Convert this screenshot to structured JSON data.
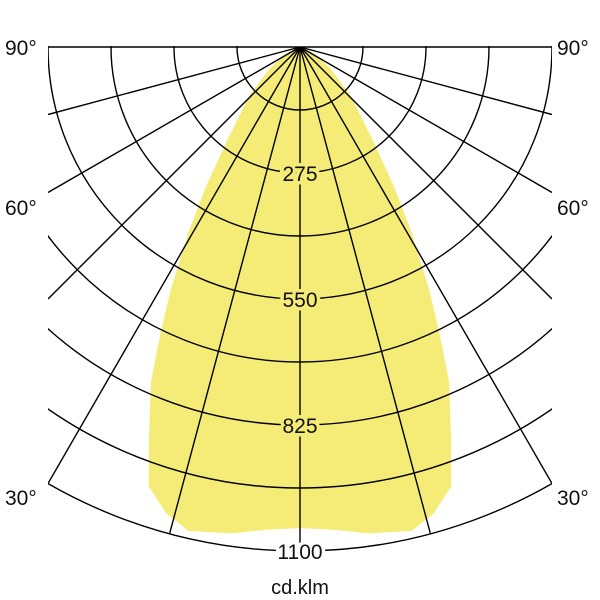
{
  "chart_data": {
    "type": "polar",
    "unit_label": "cd.klm",
    "radial_ticks": [
      275,
      550,
      825,
      1100
    ],
    "radial_max": 1100,
    "radial_minor_step": 137.5,
    "angle_labels": {
      "left": [
        "90°",
        "60°",
        "30°"
      ],
      "right": [
        "90°",
        "60°",
        "30°"
      ]
    },
    "angle_ray_step_deg": 15,
    "fill_color": "#f5ec78",
    "grid_color": "#000000",
    "symmetric": true,
    "series": [
      {
        "angles_deg": [
          0,
          4,
          8,
          13,
          16,
          19,
          21,
          24,
          26,
          28,
          31,
          34,
          38,
          46,
          55,
          65,
          80,
          90
        ],
        "values": [
          1050,
          1056,
          1072,
          1084,
          1059,
          1014,
          920,
          800,
          694,
          601,
          474,
          367,
          257,
          155,
          80,
          30,
          5,
          0
        ]
      }
    ]
  }
}
